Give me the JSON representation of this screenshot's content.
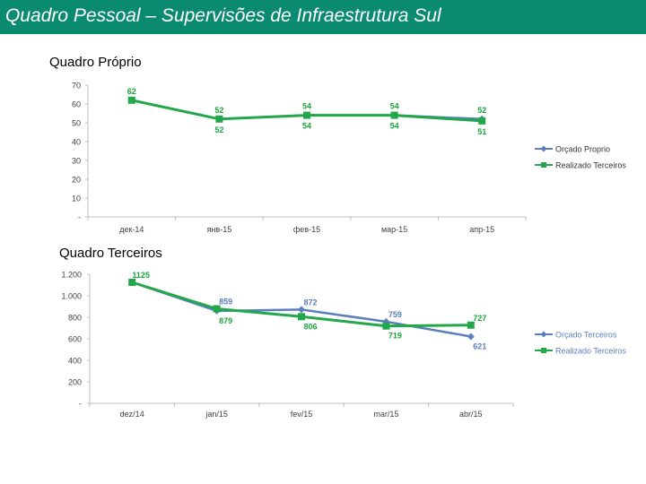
{
  "page": {
    "title": "Quadro Pessoal – Supervisões de Infraestrutura Sul",
    "section1": "Quadro Próprio",
    "section2": "Quadro Terceiros"
  },
  "colors": {
    "header": "#0a8a6e",
    "blue": "#5b7fbd",
    "green": "#22a84a",
    "green_label": "#1aa63c"
  },
  "chart_data": [
    {
      "type": "line",
      "title": "Quadro Próprio",
      "categories": [
        "дек-14",
        "янв-15",
        "фев-15",
        "мар-15",
        "апр-15"
      ],
      "ylim": [
        0,
        70
      ],
      "yticks": [
        "-",
        "10",
        "20",
        "30",
        "40",
        "50",
        "60",
        "70"
      ],
      "legend_position": "right",
      "series": [
        {
          "name": "Orçado Proprio",
          "values": [
            62,
            52,
            54,
            54,
            52
          ],
          "color": "#5b7fbd"
        },
        {
          "name": "Realizado Terceiros",
          "values": [
            62,
            52,
            54,
            54,
            51
          ],
          "color": "#22a84a"
        }
      ],
      "data_labels": {
        "upper": [
          "62",
          "52",
          "54",
          "54",
          "52"
        ],
        "lower": [
          "",
          "52",
          "54",
          "54",
          "51"
        ]
      }
    },
    {
      "type": "line",
      "title": "Quadro Terceiros",
      "categories": [
        "dez/14",
        "jan/15",
        "fev/15",
        "mar/15",
        "abr/15"
      ],
      "ylim": [
        0,
        1200
      ],
      "yticks": [
        "-",
        "200",
        "400",
        "600",
        "800",
        "1.000",
        "1.200"
      ],
      "legend_position": "right",
      "series": [
        {
          "name": "Orçado Terceiros",
          "values": [
            1125,
            859,
            872,
            759,
            621
          ],
          "color": "#5b7fbd"
        },
        {
          "name": "Realizado Terceiros",
          "values": [
            1125,
            879,
            806,
            719,
            727
          ],
          "color": "#22a84a"
        }
      ],
      "data_labels": {
        "upper": [
          "1125",
          "859",
          "872",
          "759",
          "727"
        ],
        "lower": [
          "",
          "879",
          "806",
          "719",
          "621"
        ]
      }
    }
  ]
}
